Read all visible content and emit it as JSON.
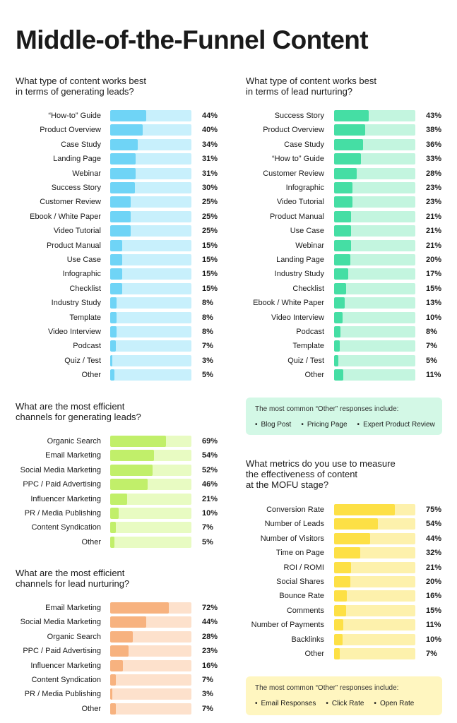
{
  "title": "Middle-of-the-Funnel Content",
  "colors": {
    "blue": {
      "fill": "#6fd4f6",
      "track": "#c8f0fc"
    },
    "teal": {
      "fill": "#45dea4",
      "track": "#c3f5df"
    },
    "lime": {
      "fill": "#c1ef6a",
      "track": "#e8fbc2"
    },
    "orange": {
      "fill": "#f7b27f",
      "track": "#fde1cc"
    },
    "yellow": {
      "fill": "#fde045",
      "track": "#fdf1ac"
    },
    "note_teal": "#d3f8e6",
    "note_yellow": "#fff6c0"
  },
  "chart_data": [
    {
      "type": "bar",
      "orientation": "horizontal",
      "title": "What type of content works best\nin terms of generating leads?",
      "categories": [
        "“How-to” Guide",
        "Product Overview",
        "Case Study",
        "Landing Page",
        "Webinar",
        "Success Story",
        "Customer Review",
        "Ebook / White Paper",
        "Video Tutorial",
        "Product Manual",
        "Use Case",
        "Infographic",
        "Checklist",
        "Industry Study",
        "Template",
        "Video Interview",
        "Podcast",
        "Quiz / Test",
        "Other"
      ],
      "values": [
        44,
        40,
        34,
        31,
        31,
        30,
        25,
        25,
        25,
        15,
        15,
        15,
        15,
        8,
        8,
        8,
        7,
        3,
        5
      ],
      "labels": [
        "44%",
        "40%",
        "34%",
        "31%",
        "31%",
        "30%",
        "25%",
        "25%",
        "25%",
        "15%",
        "15%",
        "15%",
        "15%",
        "8%",
        "8%",
        "8%",
        "7%",
        "3%",
        "5%"
      ],
      "xlim": [
        0,
        100
      ]
    },
    {
      "type": "bar",
      "orientation": "horizontal",
      "title": "What type of content works best\nin terms of lead nurturing?",
      "categories": [
        "Success Story",
        "Product Overview",
        "Case Study",
        "“How to” Guide",
        "Customer Review",
        "Infographic",
        "Video Tutorial",
        "Product Manual",
        "Use Case",
        "Webinar",
        "Landing Page",
        "Industry Study",
        "Checklist",
        "Ebook / White Paper",
        "Video Interview",
        "Podcast",
        "Template",
        "Quiz / Test",
        "Other"
      ],
      "values": [
        43,
        38,
        36,
        33,
        28,
        23,
        23,
        21,
        21,
        21,
        20,
        17,
        15,
        13,
        10,
        8,
        7,
        5,
        11
      ],
      "labels": [
        "43%",
        "38%",
        "36%",
        "33%",
        "28%",
        "23%",
        "23%",
        "21%",
        "21%",
        "21%",
        "20%",
        "17%",
        "15%",
        "13%",
        "10%",
        "8%",
        "7%",
        "5%",
        "11%"
      ],
      "xlim": [
        0,
        100
      ]
    },
    {
      "type": "bar",
      "orientation": "horizontal",
      "title": "What are the most efficient\nchannels for generating leads?",
      "categories": [
        "Organic Search",
        "Email Marketing",
        "Social Media Marketing",
        "PPC / Paid Advertising",
        "Influencer Marketing",
        "PR / Media Publishing",
        "Content Syndication",
        "Other"
      ],
      "values": [
        69,
        54,
        52,
        46,
        21,
        10,
        7,
        5
      ],
      "labels": [
        "69%",
        "54%",
        "52%",
        "46%",
        "21%",
        "10%",
        "7%",
        "5%"
      ],
      "xlim": [
        0,
        100
      ]
    },
    {
      "type": "bar",
      "orientation": "horizontal",
      "title": "What are the most efficient\nchannels for lead nurturing?",
      "categories": [
        "Email Marketing",
        "Social Media Marketing",
        "Organic Search",
        "PPC / Paid Advertising",
        "Influencer Marketing",
        "Content Syndication",
        "PR / Media Publishing",
        "Other"
      ],
      "values": [
        72,
        44,
        28,
        23,
        16,
        7,
        3,
        7
      ],
      "labels": [
        "72%",
        "44%",
        "28%",
        "23%",
        "16%",
        "7%",
        "3%",
        "7%"
      ],
      "xlim": [
        0,
        100
      ]
    },
    {
      "type": "bar",
      "orientation": "horizontal",
      "title": "What metrics do you use to measure\nthe effectiveness of content\nat the MOFU stage?",
      "categories": [
        "Conversion Rate",
        "Number of Leads",
        "Number of Visitors",
        "Time on Page",
        "ROI / ROMI",
        "Social Shares",
        "Bounce Rate",
        "Comments",
        "Number of Payments",
        "Backlinks",
        "Other"
      ],
      "values": [
        75,
        54,
        44,
        32,
        21,
        20,
        16,
        15,
        11,
        10,
        7
      ],
      "labels": [
        "75%",
        "54%",
        "44%",
        "32%",
        "21%",
        "20%",
        "16%",
        "15%",
        "11%",
        "10%",
        "7%"
      ],
      "xlim": [
        0,
        100
      ]
    }
  ],
  "notes": {
    "nurturing": {
      "heading": "The most common “Other” responses include:",
      "items": [
        "Blog Post",
        "Pricing Page",
        "Expert Product Review"
      ]
    },
    "metrics": {
      "heading": "The most common “Other” responses include:",
      "items": [
        "Email Responses",
        "Click Rate",
        "Open Rate"
      ]
    }
  }
}
